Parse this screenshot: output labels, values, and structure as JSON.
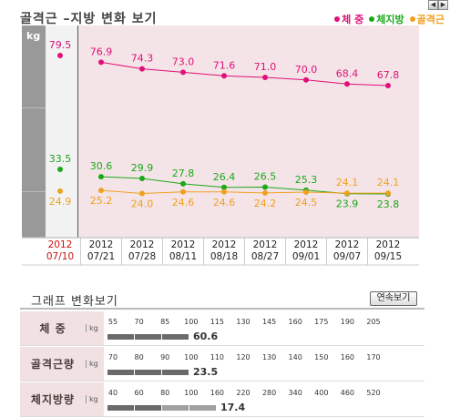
{
  "header": {
    "title": "골격근 –지방 변화 보기",
    "legend": [
      {
        "label": "체  중",
        "color": "#e0107a"
      },
      {
        "label": "체지방",
        "color": "#1aa81a"
      },
      {
        "label": "골격근",
        "color": "#f0a020"
      }
    ],
    "nav_prev": "◀",
    "nav_next": "▶"
  },
  "chart_data": {
    "type": "line",
    "ylabel": "kg",
    "x": [
      "2012 07/10",
      "2012 07/21",
      "2012 07/28",
      "2012 08/11",
      "2012 08/18",
      "2012 08/27",
      "2012 09/01",
      "2012 09/07",
      "2012 09/15"
    ],
    "x_year": [
      "2012",
      "2012",
      "2012",
      "2012",
      "2012",
      "2012",
      "2012",
      "2012",
      "2012"
    ],
    "x_date": [
      "07/10",
      "07/21",
      "07/28",
      "08/11",
      "08/18",
      "08/27",
      "09/01",
      "09/07",
      "09/15"
    ],
    "series": [
      {
        "name": "체  중",
        "color": "#e0107a",
        "values": [
          79.5,
          76.9,
          74.3,
          73.0,
          71.6,
          71.0,
          70.0,
          68.4,
          67.8
        ]
      },
      {
        "name": "체지방",
        "color": "#1aa81a",
        "values": [
          33.5,
          30.6,
          29.9,
          27.8,
          26.4,
          26.5,
          25.3,
          23.9,
          23.8
        ]
      },
      {
        "name": "골격근",
        "color": "#f0a020",
        "values": [
          24.9,
          25.2,
          24.0,
          24.6,
          24.6,
          24.2,
          24.5,
          24.1,
          24.1
        ]
      }
    ],
    "grid": false
  },
  "panel": {
    "title": "그래프  변화보기",
    "button_label": "연속보기",
    "rows": [
      {
        "label": "체    중",
        "unit": "kg",
        "ticks": [
          "55",
          "70",
          "85",
          "100",
          "115",
          "130",
          "145",
          "160",
          "175",
          "190",
          "205"
        ],
        "value": "60.6",
        "dark_segments": 3,
        "light_segments": 0,
        "fill_fraction": 0.5
      },
      {
        "label": "골격근량",
        "unit": "kg",
        "ticks": [
          "70",
          "80",
          "90",
          "100",
          "110",
          "120",
          "130",
          "140",
          "150",
          "160",
          "170"
        ],
        "value": "23.5",
        "dark_segments": 3,
        "light_segments": 0,
        "fill_fraction": 0.3
      },
      {
        "label": "체지방량",
        "unit": "kg",
        "ticks": [
          "40",
          "60",
          "80",
          "100",
          "160",
          "220",
          "280",
          "340",
          "400",
          "460",
          "520"
        ],
        "value": "17.4",
        "dark_segments": 2,
        "light_segments": 2,
        "fill_fraction": 0.4
      }
    ]
  }
}
